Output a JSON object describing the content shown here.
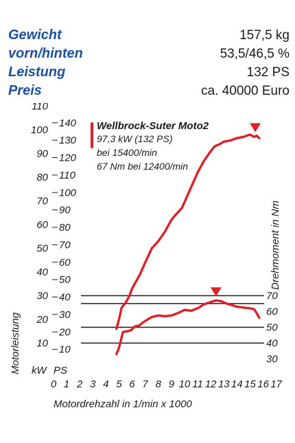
{
  "specs": [
    {
      "label": "Gewicht",
      "value": "157,5 kg"
    },
    {
      "label": "vorn/hinten",
      "value": "53,5/46,5 %"
    },
    {
      "label": "Leistung",
      "value": "132 PS"
    },
    {
      "label": "Preis",
      "value": "ca. 40000 Euro"
    }
  ],
  "chart_data": {
    "type": "line",
    "xlabel": "Motordrehzahl in 1/min x 1000",
    "ylabel_left": "Motorleistung",
    "ylabel_right": "Drehmoment in Nm",
    "unit_kw": "kW",
    "unit_ps": "PS",
    "xlim": [
      0,
      17
    ],
    "x_ticks": [
      "0",
      "1",
      "2",
      "3",
      "4",
      "5",
      "6",
      "7",
      "8",
      "9",
      "10",
      "11",
      "12",
      "13",
      "14",
      "15",
      "16",
      "17"
    ],
    "kw_ticks": [
      "110",
      "100",
      "90",
      "80",
      "70",
      "60",
      "50",
      "40",
      "30",
      "20",
      "10"
    ],
    "ps_ticks": [
      "140",
      "130",
      "120",
      "110",
      "100",
      "90",
      "80",
      "70",
      "60",
      "50",
      "40",
      "30",
      "20",
      "10"
    ],
    "nm_ticks": [
      "70",
      "60",
      "50",
      "40",
      "30"
    ],
    "kw_range": [
      0,
      110
    ],
    "nm_range": [
      25,
      75
    ],
    "gridlines_nm": [
      70,
      65,
      50,
      40
    ],
    "legend": {
      "title": "Wellbrock-Suter Moto2",
      "lines": [
        "97,3 kW (132 PS)",
        "bei 15400/min",
        "67 Nm bei 12400/min"
      ]
    },
    "series_color": "#e01e25",
    "series": [
      {
        "axis": "kW",
        "x": [
          4.8,
          5.0,
          5.2,
          5.5,
          5.8,
          6.0,
          6.3,
          6.6,
          7.0,
          7.5,
          8.0,
          8.5,
          9.0,
          9.3,
          9.8,
          10.2,
          10.6,
          11.0,
          11.5,
          12.0,
          12.3,
          12.7,
          13.0,
          13.5,
          14.0,
          14.5,
          15.0,
          15.3,
          15.5,
          15.7
        ],
        "y": [
          16,
          20,
          25,
          27,
          30,
          33,
          36,
          39,
          44,
          50,
          53,
          57,
          62,
          64,
          67,
          72,
          77,
          82,
          87,
          91,
          93,
          94,
          95,
          95.5,
          96.5,
          97,
          98,
          97,
          97.5,
          96.5
        ]
      },
      {
        "axis": "Nm",
        "x": [
          4.8,
          5.0,
          5.3,
          5.6,
          5.9,
          6.2,
          6.5,
          7.0,
          7.5,
          8.0,
          8.5,
          9.0,
          9.5,
          10.0,
          10.5,
          11.0,
          11.5,
          12.0,
          12.4,
          12.8,
          13.2,
          13.6,
          14.0,
          14.5,
          15.0,
          15.3,
          15.5,
          15.7
        ],
        "y": [
          33,
          37,
          47,
          47.5,
          48,
          50.5,
          51,
          54,
          56.5,
          57.5,
          57,
          57.5,
          59,
          61,
          60.5,
          62,
          64.5,
          66,
          67,
          66.5,
          65,
          64,
          63,
          62.5,
          62,
          61.5,
          59,
          56
        ]
      }
    ],
    "peak_markers": [
      {
        "axis": "kW",
        "x": 15.4,
        "y": 97.3
      },
      {
        "axis": "Nm",
        "x": 12.4,
        "y": 67
      }
    ]
  }
}
